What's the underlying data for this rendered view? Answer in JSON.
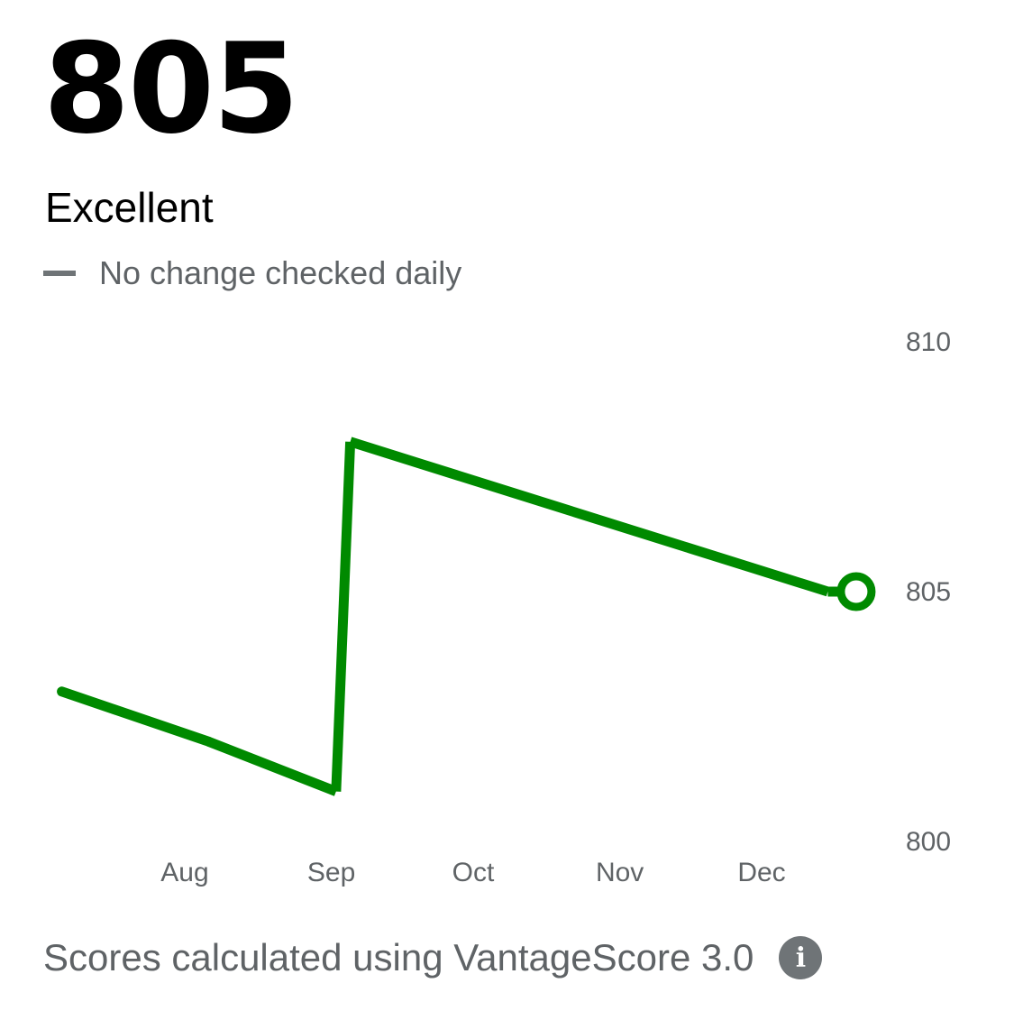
{
  "score": "805",
  "rating": "Excellent",
  "change_text": "No change checked daily",
  "footer": {
    "text": "Scores calculated using VantageScore 3.0",
    "info_icon": "i"
  },
  "colors": {
    "line": "#008a00",
    "text": "#5f6366"
  },
  "chart_data": {
    "type": "line",
    "x": [
      "Jul 6",
      "Aug 6",
      "Sep 2",
      "Sep 5",
      "Dec 15",
      "Dec 21"
    ],
    "values": [
      803,
      802,
      801,
      808,
      805,
      805
    ],
    "x_ticks": [
      "Aug",
      "Sep",
      "Oct",
      "Nov",
      "Dec"
    ],
    "y_ticks": [
      "810",
      "805",
      "800"
    ],
    "ylim": [
      800,
      810
    ],
    "grid": false,
    "last_point_marker": "hollow circle"
  }
}
